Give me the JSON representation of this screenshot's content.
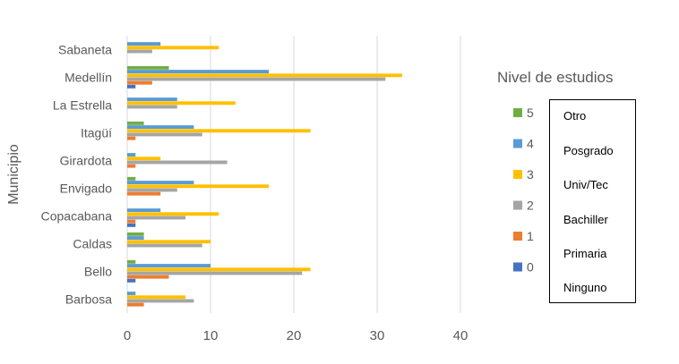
{
  "chart_data": {
    "type": "bar",
    "orientation": "horizontal",
    "ylabel": "Municipio",
    "xlim": [
      0,
      40
    ],
    "x_ticks": [
      0,
      10,
      20,
      30,
      40
    ],
    "grid": true,
    "categories": [
      "Sabaneta",
      "Medellín",
      "La Estrella",
      "Itagüí",
      "Girardota",
      "Envigado",
      "Copacabana",
      "Caldas",
      "Bello",
      "Barbosa"
    ],
    "legend_title": "Nivel de estudios",
    "legend_position": "right",
    "series": [
      {
        "name": "5",
        "color": "#70AD47",
        "values": [
          0,
          5,
          0,
          2,
          0,
          1,
          0,
          2,
          1,
          0
        ]
      },
      {
        "name": "4",
        "color": "#5B9BD5",
        "values": [
          4,
          17,
          6,
          8,
          1,
          8,
          4,
          2,
          10,
          1
        ]
      },
      {
        "name": "3",
        "color": "#FFC000",
        "values": [
          11,
          33,
          13,
          22,
          4,
          17,
          11,
          10,
          22,
          7
        ]
      },
      {
        "name": "2",
        "color": "#A5A5A5",
        "values": [
          3,
          31,
          6,
          9,
          12,
          6,
          7,
          9,
          21,
          8
        ]
      },
      {
        "name": "1",
        "color": "#ED7D31",
        "values": [
          0,
          3,
          0,
          1,
          1,
          4,
          1,
          0,
          5,
          2
        ]
      },
      {
        "name": "0",
        "color": "#4472C4",
        "values": [
          0,
          1,
          0,
          0,
          0,
          0,
          1,
          0,
          1,
          0
        ]
      }
    ],
    "legend_descriptions": [
      "Otro",
      "Posgrado",
      "Univ/Tec",
      "Bachiller",
      "Primaria",
      "Ninguno"
    ]
  }
}
